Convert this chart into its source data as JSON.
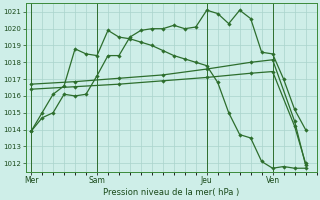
{
  "title": "Pression niveau de la mer( hPa )",
  "bg_color": "#ceeee8",
  "grid_color": "#aad4cc",
  "line_color": "#2d6e2d",
  "vline_color": "#2d6e2d",
  "ylim": [
    1011.5,
    1021.5
  ],
  "yticks": [
    1012,
    1013,
    1014,
    1015,
    1016,
    1017,
    1018,
    1019,
    1020,
    1021
  ],
  "xtick_labels": [
    "Mer",
    "Sam",
    "Jeu",
    "Ven"
  ],
  "xtick_positions": [
    0,
    6,
    16,
    22
  ],
  "vline_positions": [
    0,
    6,
    16,
    22
  ],
  "xlim": [
    -0.5,
    26
  ],
  "line1_x": [
    0,
    1,
    2,
    3,
    4,
    5,
    6,
    7,
    8,
    9,
    10,
    11,
    12,
    13,
    14,
    15,
    16,
    17,
    18,
    19,
    20,
    21,
    22,
    23,
    24,
    25
  ],
  "line1_y": [
    1013.9,
    1014.7,
    1015.0,
    1016.1,
    1016.0,
    1016.1,
    1017.2,
    1018.4,
    1018.4,
    1019.5,
    1019.9,
    1020.0,
    1020.0,
    1020.2,
    1020.0,
    1020.1,
    1021.1,
    1020.9,
    1020.3,
    1021.1,
    1020.6,
    1018.6,
    1018.5,
    1017.0,
    1015.2,
    1014.0
  ],
  "line2_x": [
    0,
    1,
    2,
    3,
    4,
    5,
    6,
    7,
    8,
    9,
    10,
    11,
    12,
    13,
    14,
    15,
    16,
    17,
    18,
    19,
    20,
    21,
    22,
    23,
    24,
    25
  ],
  "line2_y": [
    1013.9,
    1015.0,
    1016.1,
    1016.6,
    1018.8,
    1018.5,
    1018.4,
    1019.9,
    1019.5,
    1019.4,
    1019.2,
    1019.0,
    1018.7,
    1018.4,
    1018.2,
    1018.0,
    1017.8,
    1016.8,
    1015.0,
    1013.7,
    1013.5,
    1012.1,
    1011.7,
    1011.8,
    1011.7,
    1011.7
  ],
  "line3_x": [
    0,
    4,
    8,
    12,
    16,
    20,
    22,
    24,
    25
  ],
  "line3_y": [
    1016.7,
    1016.85,
    1017.05,
    1017.25,
    1017.6,
    1018.0,
    1018.15,
    1014.5,
    1011.9
  ],
  "line4_x": [
    0,
    4,
    8,
    12,
    16,
    20,
    22,
    24,
    25
  ],
  "line4_y": [
    1016.4,
    1016.55,
    1016.7,
    1016.9,
    1017.1,
    1017.35,
    1017.45,
    1014.2,
    1012.0
  ]
}
